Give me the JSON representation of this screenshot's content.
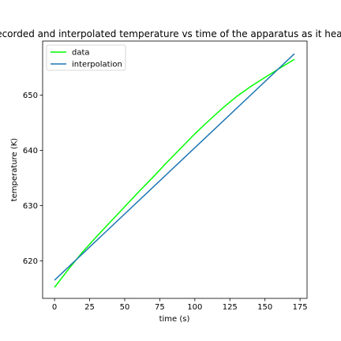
{
  "chart_data": {
    "type": "line",
    "title": "Recorded and interpolated temperature vs time of the apparatus as it heats",
    "xlabel": "time (s)",
    "ylabel": "temperature (K)",
    "xlim": [
      -8.5,
      180
    ],
    "ylim": [
      613.2,
      659.8
    ],
    "xticks": [
      0,
      25,
      50,
      75,
      100,
      125,
      150,
      175
    ],
    "yticks": [
      620,
      630,
      640,
      650
    ],
    "grid": false,
    "legend_position": "top-left",
    "series": [
      {
        "name": "data",
        "color": "#00ff00",
        "x": [
          0,
          10,
          20,
          30,
          40,
          50,
          60,
          70,
          80,
          90,
          100,
          110,
          120,
          130,
          140,
          150,
          160,
          171
        ],
        "y": [
          615.2,
          618.5,
          621.6,
          624.4,
          627.1,
          629.8,
          632.5,
          635.1,
          637.8,
          640.4,
          643.0,
          645.4,
          647.7,
          649.8,
          651.6,
          653.2,
          654.8,
          656.5
        ]
      },
      {
        "name": "interpolation",
        "color": "#1f77b4",
        "x": [
          0,
          171
        ],
        "y": [
          616.5,
          657.5
        ]
      }
    ]
  }
}
